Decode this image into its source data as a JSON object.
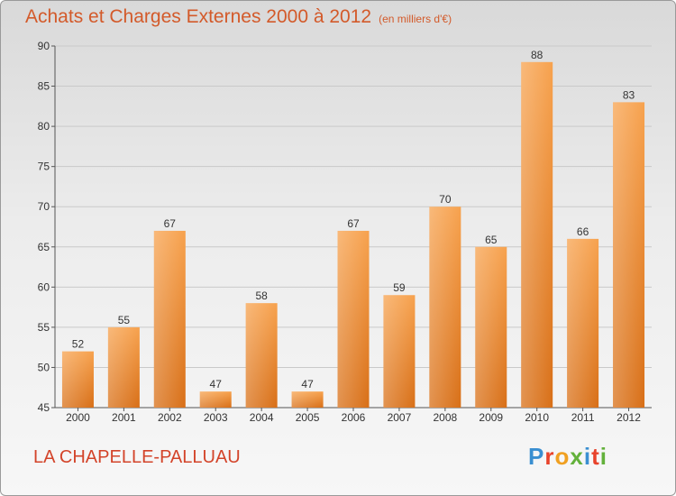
{
  "chart_data": {
    "type": "bar",
    "title": "Achats et Charges Externes 2000 à 2012",
    "subtitle": "(en milliers d'€)",
    "categories": [
      "2000",
      "2001",
      "2002",
      "2003",
      "2004",
      "2005",
      "2006",
      "2007",
      "2008",
      "2009",
      "2010",
      "2011",
      "2012"
    ],
    "values": [
      52,
      55,
      67,
      47,
      58,
      47,
      67,
      59,
      70,
      65,
      88,
      66,
      83
    ],
    "ylim": [
      45,
      90
    ],
    "yticks": [
      45,
      50,
      55,
      60,
      65,
      70,
      75,
      80,
      85,
      90
    ],
    "grid": true,
    "bar_color": "#f0903a"
  },
  "footer": {
    "commune": "LA CHAPELLE-PALLUAU",
    "logo_text": "Proxiti",
    "logo_colors": [
      "#3a8fd1",
      "#e8432b",
      "#f0a021",
      "#63b13b",
      "#3a8fd1",
      "#e8432b",
      "#63b13b"
    ]
  }
}
